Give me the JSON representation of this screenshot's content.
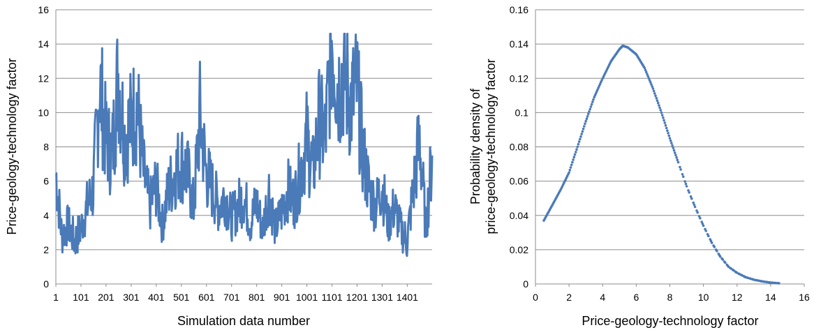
{
  "chart_data": [
    {
      "type": "line",
      "xlabel": "Simulation data number",
      "ylabel": "Price-geology-technology factor",
      "xlim": [
        1,
        1500
      ],
      "ylim": [
        0,
        16
      ],
      "x_tick_labels": [
        "1",
        "101",
        "201",
        "301",
        "401",
        "501",
        "601",
        "701",
        "801",
        "901",
        "1001",
        "1101",
        "1201",
        "1301",
        "1401"
      ],
      "y_tick_labels": [
        "0",
        "2",
        "4",
        "6",
        "8",
        "10",
        "12",
        "14",
        "16"
      ],
      "grid": "horizontal",
      "color": "#4a7ab8",
      "series": [
        {
          "x": [
            1,
            25,
            50,
            75,
            100,
            125,
            150,
            175,
            200,
            225,
            250,
            275,
            300,
            325,
            350,
            375,
            400,
            425,
            450,
            475,
            500,
            525,
            550,
            575,
            600,
            625,
            650,
            675,
            700,
            725,
            750,
            775,
            800,
            825,
            850,
            875,
            900,
            925,
            950,
            975,
            1000,
            1025,
            1050,
            1075,
            1100,
            1125,
            1150,
            1175,
            1200,
            1225,
            1250,
            1275,
            1300,
            1325,
            1350,
            1375,
            1400,
            1425,
            1450,
            1475,
            1500
          ],
          "values": [
            6.5,
            2.8,
            3.5,
            2.5,
            3.2,
            4.5,
            5.5,
            11.8,
            8.5,
            7.5,
            12.3,
            8.5,
            9.5,
            10.5,
            6.5,
            4.5,
            5.8,
            3.5,
            5.5,
            6.5,
            7.2,
            6.5,
            4.5,
            9.8,
            6.5,
            5.5,
            4.5,
            5.2,
            3.8,
            4.5,
            5.2,
            3.5,
            4.8,
            3.2,
            5.5,
            3.2,
            4.2,
            5.5,
            4.8,
            6.5,
            8.5,
            6.5,
            9.5,
            8.5,
            14.5,
            11.5,
            12.5,
            10.5,
            11.5,
            7.5,
            5.5,
            4.5,
            5.8,
            3.5,
            4.5,
            3.2,
            2.5,
            5.5,
            8.5,
            3.2,
            7.5
          ]
        }
      ]
    },
    {
      "type": "scatter",
      "xlabel": "Price-geology-technology factor",
      "ylabel": "Probability density of price-geology-technology factor",
      "ylabel_lines": [
        "Probability density of",
        "price-geology-technology factor"
      ],
      "xlim": [
        0,
        16
      ],
      "ylim": [
        0,
        0.16
      ],
      "x_tick_labels": [
        "0",
        "2",
        "4",
        "6",
        "8",
        "10",
        "12",
        "14",
        "16"
      ],
      "y_tick_labels": [
        "0",
        "0.02",
        "0.04",
        "0.06",
        "0.08",
        "0.1",
        "0.12",
        "0.14",
        "0.16"
      ],
      "grid": "horizontal",
      "color": "#4a7ab8",
      "series": [
        {
          "x": [
            0.5,
            1,
            1.5,
            2,
            2.5,
            3,
            3.5,
            4,
            4.5,
            5,
            5.2,
            5.5,
            6,
            6.5,
            7,
            7.5,
            8,
            8.5,
            9,
            9.5,
            10,
            10.5,
            11,
            11.5,
            12,
            12.5,
            13,
            13.5,
            14,
            14.5
          ],
          "values": [
            0.037,
            0.046,
            0.055,
            0.065,
            0.08,
            0.095,
            0.109,
            0.12,
            0.13,
            0.137,
            0.139,
            0.138,
            0.134,
            0.126,
            0.114,
            0.1,
            0.085,
            0.071,
            0.057,
            0.045,
            0.034,
            0.024,
            0.016,
            0.01,
            0.0065,
            0.004,
            0.0025,
            0.0015,
            0.0008,
            0.0004
          ]
        }
      ]
    }
  ]
}
